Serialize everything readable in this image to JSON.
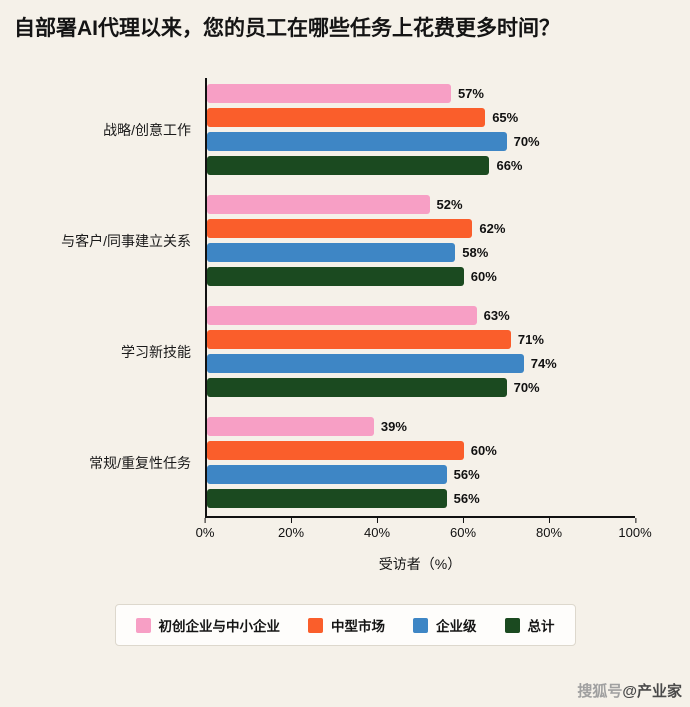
{
  "title": "自部署AI代理以来，您的员工在哪些任务上花费更多时间？",
  "chart_data": {
    "type": "bar",
    "orientation": "horizontal",
    "title": "自部署AI代理以来，您的员工在哪些任务上花费更多时间？",
    "categories": [
      "战略/创意工作",
      "与客户/同事建立关系",
      "学习新技能",
      "常规/重复性任务"
    ],
    "series": [
      {
        "name": "初创企业与中小企业",
        "color": "#F79FC5",
        "values": [
          57,
          52,
          63,
          39
        ]
      },
      {
        "name": "中型市场",
        "color": "#FA5E2B",
        "values": [
          65,
          62,
          71,
          60
        ]
      },
      {
        "name": "企业级",
        "color": "#3E86C5",
        "values": [
          70,
          58,
          74,
          56
        ]
      },
      {
        "name": "总计",
        "color": "#1B4A20",
        "values": [
          66,
          60,
          70,
          56
        ]
      }
    ],
    "xlabel": "受访者（%）",
    "xticks": [
      "0%",
      "20%",
      "40%",
      "60%",
      "80%",
      "100%"
    ],
    "xlim": [
      0,
      100
    ],
    "value_suffix": "%",
    "legend_position": "bottom",
    "grid": false
  },
  "watermark": {
    "source": "搜狐号",
    "handle": "@产业家"
  }
}
